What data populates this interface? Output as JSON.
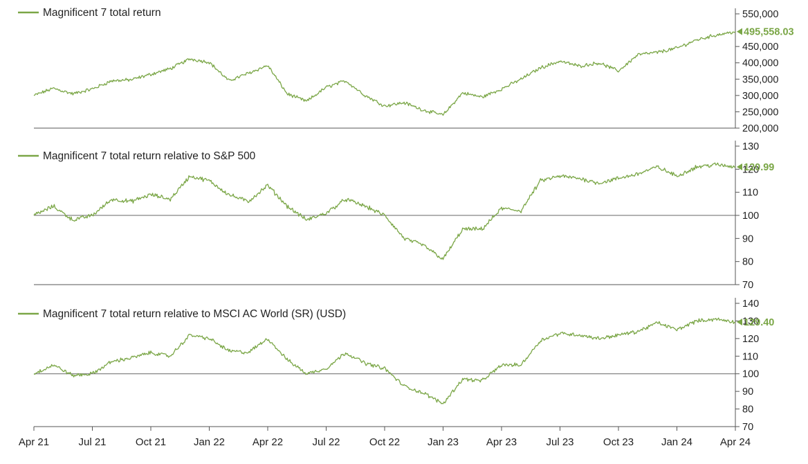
{
  "chart_data": {
    "type": "line",
    "x_ticks": [
      "Apr 21",
      "Jul 21",
      "Oct 21",
      "Jan 22",
      "Apr 22",
      "Jul 22",
      "Oct 22",
      "Jan 23",
      "Apr 23",
      "Jul 23",
      "Oct 23",
      "Jan 24",
      "Apr 24"
    ],
    "x_range": [
      "Apr 21",
      "Apr 24"
    ],
    "line_color": "#7aa646",
    "axis_color": "#555555",
    "grid": false,
    "panels": [
      {
        "series_name": "Magnificent 7 total return",
        "legend_position": "top-left",
        "y_ticks": [
          "550,000",
          "450,000",
          "400,000",
          "350,000",
          "300,000",
          "250,000",
          "200,000"
        ],
        "y_tick_values": [
          550000,
          450000,
          400000,
          350000,
          300000,
          250000,
          200000
        ],
        "ylim": [
          200000,
          550000
        ],
        "reference_line": null,
        "last_value": 495558.03,
        "last_value_label": "495,558.03",
        "points": [
          [
            "Apr 21",
            300000
          ],
          [
            "May 21",
            322000
          ],
          [
            "Jun 21",
            305000
          ],
          [
            "Jul 21",
            320000
          ],
          [
            "Aug 21",
            345000
          ],
          [
            "Sep 21",
            348000
          ],
          [
            "Oct 21",
            365000
          ],
          [
            "Nov 21",
            382000
          ],
          [
            "Dec 21",
            412000
          ],
          [
            "Jan 22",
            402000
          ],
          [
            "Feb 22",
            345000
          ],
          [
            "Mar 22",
            368000
          ],
          [
            "Apr 22",
            392000
          ],
          [
            "May 22",
            305000
          ],
          [
            "Jun 22",
            282000
          ],
          [
            "Jul 22",
            325000
          ],
          [
            "Aug 22",
            345000
          ],
          [
            "Sep 22",
            300000
          ],
          [
            "Oct 22",
            268000
          ],
          [
            "Nov 22",
            278000
          ],
          [
            "Dec 22",
            255000
          ],
          [
            "Jan 23",
            240000
          ],
          [
            "Feb 23",
            308000
          ],
          [
            "Mar 23",
            295000
          ],
          [
            "Apr 23",
            320000
          ],
          [
            "May 23",
            350000
          ],
          [
            "Jun 23",
            385000
          ],
          [
            "Jul 23",
            405000
          ],
          [
            "Aug 23",
            390000
          ],
          [
            "Sep 23",
            400000
          ],
          [
            "Oct 23",
            375000
          ],
          [
            "Nov 23",
            425000
          ],
          [
            "Dec 23",
            432000
          ],
          [
            "Jan 24",
            445000
          ],
          [
            "Feb 24",
            470000
          ],
          [
            "Mar 24",
            485000
          ],
          [
            "Apr 24",
            495558
          ]
        ]
      },
      {
        "series_name": "Magnificent 7 total return relative to S&P 500",
        "legend_position": "top-left",
        "y_ticks": [
          "130",
          "120",
          "110",
          "100",
          "90",
          "80",
          "70"
        ],
        "y_tick_values": [
          130,
          120,
          110,
          100,
          90,
          80,
          70
        ],
        "ylim": [
          70,
          130
        ],
        "reference_line": 100,
        "last_value": 120.99,
        "last_value_label": "120.99",
        "points": [
          [
            "Apr 21",
            100
          ],
          [
            "May 21",
            104
          ],
          [
            "Jun 21",
            98
          ],
          [
            "Jul 21",
            100
          ],
          [
            "Aug 21",
            107
          ],
          [
            "Sep 21",
            106
          ],
          [
            "Oct 21",
            109
          ],
          [
            "Nov 21",
            107
          ],
          [
            "Dec 21",
            117
          ],
          [
            "Jan 22",
            115
          ],
          [
            "Feb 22",
            109
          ],
          [
            "Mar 22",
            106
          ],
          [
            "Apr 22",
            113
          ],
          [
            "May 22",
            104
          ],
          [
            "Jun 22",
            98
          ],
          [
            "Jul 22",
            101
          ],
          [
            "Aug 22",
            107
          ],
          [
            "Sep 22",
            104
          ],
          [
            "Oct 22",
            100
          ],
          [
            "Nov 22",
            90
          ],
          [
            "Dec 22",
            87
          ],
          [
            "Jan 23",
            81
          ],
          [
            "Feb 23",
            94
          ],
          [
            "Mar 23",
            94
          ],
          [
            "Apr 23",
            103
          ],
          [
            "May 23",
            102
          ],
          [
            "Jun 23",
            115
          ],
          [
            "Jul 23",
            117
          ],
          [
            "Aug 23",
            116
          ],
          [
            "Sep 23",
            114
          ],
          [
            "Oct 23",
            116
          ],
          [
            "Nov 23",
            118
          ],
          [
            "Dec 23",
            121
          ],
          [
            "Jan 24",
            117
          ],
          [
            "Feb 24",
            121
          ],
          [
            "Mar 24",
            122
          ],
          [
            "Apr 24",
            120.99
          ]
        ]
      },
      {
        "series_name": "Magnificent 7 total return relative to MSCI AC World (SR) (USD)",
        "legend_position": "top-left",
        "y_ticks": [
          "140",
          "130",
          "120",
          "110",
          "100",
          "90",
          "80",
          "70"
        ],
        "y_tick_values": [
          140,
          130,
          120,
          110,
          100,
          90,
          80,
          70
        ],
        "ylim": [
          70,
          140
        ],
        "reference_line": 100,
        "last_value": 129.4,
        "last_value_label": "129.40",
        "points": [
          [
            "Apr 21",
            100
          ],
          [
            "May 21",
            105
          ],
          [
            "Jun 21",
            99
          ],
          [
            "Jul 21",
            100
          ],
          [
            "Aug 21",
            107
          ],
          [
            "Sep 21",
            109
          ],
          [
            "Oct 21",
            112
          ],
          [
            "Nov 21",
            110
          ],
          [
            "Dec 21",
            122
          ],
          [
            "Jan 22",
            120
          ],
          [
            "Feb 22",
            113
          ],
          [
            "Mar 22",
            112
          ],
          [
            "Apr 22",
            120
          ],
          [
            "May 22",
            108
          ],
          [
            "Jun 22",
            100
          ],
          [
            "Jul 22",
            103
          ],
          [
            "Aug 22",
            112
          ],
          [
            "Sep 22",
            106
          ],
          [
            "Oct 22",
            103
          ],
          [
            "Nov 22",
            93
          ],
          [
            "Dec 22",
            89
          ],
          [
            "Jan 23",
            83
          ],
          [
            "Feb 23",
            97
          ],
          [
            "Mar 23",
            96
          ],
          [
            "Apr 23",
            105
          ],
          [
            "May 23",
            105
          ],
          [
            "Jun 23",
            119
          ],
          [
            "Jul 23",
            123
          ],
          [
            "Aug 23",
            122
          ],
          [
            "Sep 23",
            120
          ],
          [
            "Oct 23",
            122
          ],
          [
            "Nov 23",
            124
          ],
          [
            "Dec 23",
            129
          ],
          [
            "Jan 24",
            125
          ],
          [
            "Feb 24",
            130
          ],
          [
            "Mar 24",
            131
          ],
          [
            "Apr 24",
            129.4
          ]
        ]
      }
    ]
  }
}
